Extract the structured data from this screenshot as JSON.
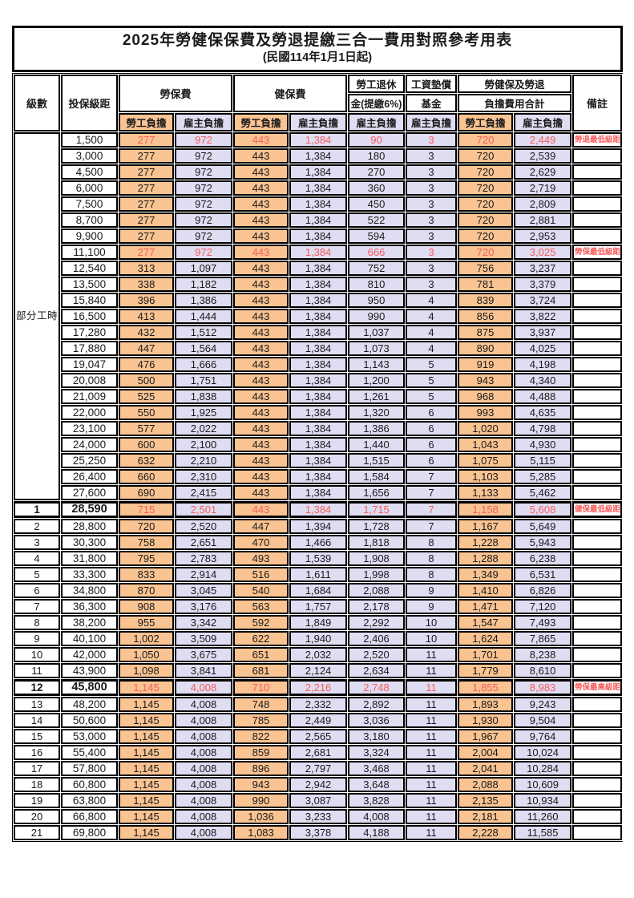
{
  "title": {
    "line1": "2025年勞健保保費及勞退提繳三合一費用對照參考用表",
    "line2": "(民國114年1月1日起)"
  },
  "header": {
    "level": "級數",
    "bracket": "投保級距",
    "labor_insurance": "勞保費",
    "health_insurance": "健保費",
    "pension_line1": "勞工退休",
    "pension_line2": "金(提繳6%)",
    "wage_fund_line1": "工資墊償",
    "wage_fund_line2": "基金",
    "total_line1": "勞健保及勞退",
    "total_line2": "負擔費用合計",
    "remark": "備註",
    "employee_burden": "勞工負擔",
    "employer_burden": "雇主負擔"
  },
  "part_time_label": "部分工時",
  "colors": {
    "employee_bg": "#F9C392",
    "employer_bg": "#DFDDF2",
    "highlight_value_red": "#F85C5C",
    "remark_red": "#F74545",
    "border_black": "#000000"
  },
  "rows": [
    {
      "level": "",
      "bracket": "1,500",
      "li_emp": "277",
      "li_er": "972",
      "hi_emp": "443",
      "hi_er": "1,384",
      "pension": "90",
      "fund": "3",
      "sum_emp": "720",
      "sum_er": "2,449",
      "remark": "勞退最低級距",
      "red": true,
      "thick": false
    },
    {
      "level": "",
      "bracket": "3,000",
      "li_emp": "277",
      "li_er": "972",
      "hi_emp": "443",
      "hi_er": "1,384",
      "pension": "180",
      "fund": "3",
      "sum_emp": "720",
      "sum_er": "2,539",
      "remark": ""
    },
    {
      "level": "",
      "bracket": "4,500",
      "li_emp": "277",
      "li_er": "972",
      "hi_emp": "443",
      "hi_er": "1,384",
      "pension": "270",
      "fund": "3",
      "sum_emp": "720",
      "sum_er": "2,629",
      "remark": ""
    },
    {
      "level": "",
      "bracket": "6,000",
      "li_emp": "277",
      "li_er": "972",
      "hi_emp": "443",
      "hi_er": "1,384",
      "pension": "360",
      "fund": "3",
      "sum_emp": "720",
      "sum_er": "2,719",
      "remark": ""
    },
    {
      "level": "",
      "bracket": "7,500",
      "li_emp": "277",
      "li_er": "972",
      "hi_emp": "443",
      "hi_er": "1,384",
      "pension": "450",
      "fund": "3",
      "sum_emp": "720",
      "sum_er": "2,809",
      "remark": ""
    },
    {
      "level": "",
      "bracket": "8,700",
      "li_emp": "277",
      "li_er": "972",
      "hi_emp": "443",
      "hi_er": "1,384",
      "pension": "522",
      "fund": "3",
      "sum_emp": "720",
      "sum_er": "2,881",
      "remark": ""
    },
    {
      "level": "",
      "bracket": "9,900",
      "li_emp": "277",
      "li_er": "972",
      "hi_emp": "443",
      "hi_er": "1,384",
      "pension": "594",
      "fund": "3",
      "sum_emp": "720",
      "sum_er": "2,953",
      "remark": ""
    },
    {
      "level": "",
      "bracket": "11,100",
      "li_emp": "277",
      "li_er": "972",
      "hi_emp": "443",
      "hi_er": "1,384",
      "pension": "666",
      "fund": "3",
      "sum_emp": "720",
      "sum_er": "3,025",
      "remark": "勞保最低級距",
      "red": true
    },
    {
      "level": "",
      "bracket": "12,540",
      "li_emp": "313",
      "li_er": "1,097",
      "hi_emp": "443",
      "hi_er": "1,384",
      "pension": "752",
      "fund": "3",
      "sum_emp": "756",
      "sum_er": "3,237",
      "remark": ""
    },
    {
      "level": "",
      "bracket": "13,500",
      "li_emp": "338",
      "li_er": "1,182",
      "hi_emp": "443",
      "hi_er": "1,384",
      "pension": "810",
      "fund": "3",
      "sum_emp": "781",
      "sum_er": "3,379",
      "remark": ""
    },
    {
      "level": "",
      "bracket": "15,840",
      "li_emp": "396",
      "li_er": "1,386",
      "hi_emp": "443",
      "hi_er": "1,384",
      "pension": "950",
      "fund": "4",
      "sum_emp": "839",
      "sum_er": "3,724",
      "remark": ""
    },
    {
      "level": "",
      "bracket": "16,500",
      "li_emp": "413",
      "li_er": "1,444",
      "hi_emp": "443",
      "hi_er": "1,384",
      "pension": "990",
      "fund": "4",
      "sum_emp": "856",
      "sum_er": "3,822",
      "remark": ""
    },
    {
      "level": "",
      "bracket": "17,280",
      "li_emp": "432",
      "li_er": "1,512",
      "hi_emp": "443",
      "hi_er": "1,384",
      "pension": "1,037",
      "fund": "4",
      "sum_emp": "875",
      "sum_er": "3,937",
      "remark": ""
    },
    {
      "level": "",
      "bracket": "17,880",
      "li_emp": "447",
      "li_er": "1,564",
      "hi_emp": "443",
      "hi_er": "1,384",
      "pension": "1,073",
      "fund": "4",
      "sum_emp": "890",
      "sum_er": "4,025",
      "remark": ""
    },
    {
      "level": "",
      "bracket": "19,047",
      "li_emp": "476",
      "li_er": "1,666",
      "hi_emp": "443",
      "hi_er": "1,384",
      "pension": "1,143",
      "fund": "5",
      "sum_emp": "919",
      "sum_er": "4,198",
      "remark": ""
    },
    {
      "level": "",
      "bracket": "20,008",
      "li_emp": "500",
      "li_er": "1,751",
      "hi_emp": "443",
      "hi_er": "1,384",
      "pension": "1,200",
      "fund": "5",
      "sum_emp": "943",
      "sum_er": "4,340",
      "remark": ""
    },
    {
      "level": "",
      "bracket": "21,009",
      "li_emp": "525",
      "li_er": "1,838",
      "hi_emp": "443",
      "hi_er": "1,384",
      "pension": "1,261",
      "fund": "5",
      "sum_emp": "968",
      "sum_er": "4,488",
      "remark": ""
    },
    {
      "level": "",
      "bracket": "22,000",
      "li_emp": "550",
      "li_er": "1,925",
      "hi_emp": "443",
      "hi_er": "1,384",
      "pension": "1,320",
      "fund": "6",
      "sum_emp": "993",
      "sum_er": "4,635",
      "remark": ""
    },
    {
      "level": "",
      "bracket": "23,100",
      "li_emp": "577",
      "li_er": "2,022",
      "hi_emp": "443",
      "hi_er": "1,384",
      "pension": "1,386",
      "fund": "6",
      "sum_emp": "1,020",
      "sum_er": "4,798",
      "remark": ""
    },
    {
      "level": "",
      "bracket": "24,000",
      "li_emp": "600",
      "li_er": "2,100",
      "hi_emp": "443",
      "hi_er": "1,384",
      "pension": "1,440",
      "fund": "6",
      "sum_emp": "1,043",
      "sum_er": "4,930",
      "remark": ""
    },
    {
      "level": "",
      "bracket": "25,250",
      "li_emp": "632",
      "li_er": "2,210",
      "hi_emp": "443",
      "hi_er": "1,384",
      "pension": "1,515",
      "fund": "6",
      "sum_emp": "1,075",
      "sum_er": "5,115",
      "remark": ""
    },
    {
      "level": "",
      "bracket": "26,400",
      "li_emp": "660",
      "li_er": "2,310",
      "hi_emp": "443",
      "hi_er": "1,384",
      "pension": "1,584",
      "fund": "7",
      "sum_emp": "1,103",
      "sum_er": "5,285",
      "remark": ""
    },
    {
      "level": "",
      "bracket": "27,600",
      "li_emp": "690",
      "li_er": "2,415",
      "hi_emp": "443",
      "hi_er": "1,384",
      "pension": "1,656",
      "fund": "7",
      "sum_emp": "1,133",
      "sum_er": "5,462",
      "remark": ""
    },
    {
      "level": "1",
      "bracket": "28,590",
      "li_emp": "715",
      "li_er": "2,501",
      "hi_emp": "443",
      "hi_er": "1,384",
      "pension": "1,715",
      "fund": "7",
      "sum_emp": "1,158",
      "sum_er": "5,608",
      "remark": "健保最低級距",
      "red": true,
      "thick": true
    },
    {
      "level": "2",
      "bracket": "28,800",
      "li_emp": "720",
      "li_er": "2,520",
      "hi_emp": "447",
      "hi_er": "1,394",
      "pension": "1,728",
      "fund": "7",
      "sum_emp": "1,167",
      "sum_er": "5,649",
      "remark": ""
    },
    {
      "level": "3",
      "bracket": "30,300",
      "li_emp": "758",
      "li_er": "2,651",
      "hi_emp": "470",
      "hi_er": "1,466",
      "pension": "1,818",
      "fund": "8",
      "sum_emp": "1,228",
      "sum_er": "5,943",
      "remark": ""
    },
    {
      "level": "4",
      "bracket": "31,800",
      "li_emp": "795",
      "li_er": "2,783",
      "hi_emp": "493",
      "hi_er": "1,539",
      "pension": "1,908",
      "fund": "8",
      "sum_emp": "1,288",
      "sum_er": "6,238",
      "remark": ""
    },
    {
      "level": "5",
      "bracket": "33,300",
      "li_emp": "833",
      "li_er": "2,914",
      "hi_emp": "516",
      "hi_er": "1,611",
      "pension": "1,998",
      "fund": "8",
      "sum_emp": "1,349",
      "sum_er": "6,531",
      "remark": ""
    },
    {
      "level": "6",
      "bracket": "34,800",
      "li_emp": "870",
      "li_er": "3,045",
      "hi_emp": "540",
      "hi_er": "1,684",
      "pension": "2,088",
      "fund": "9",
      "sum_emp": "1,410",
      "sum_er": "6,826",
      "remark": ""
    },
    {
      "level": "7",
      "bracket": "36,300",
      "li_emp": "908",
      "li_er": "3,176",
      "hi_emp": "563",
      "hi_er": "1,757",
      "pension": "2,178",
      "fund": "9",
      "sum_emp": "1,471",
      "sum_er": "7,120",
      "remark": ""
    },
    {
      "level": "8",
      "bracket": "38,200",
      "li_emp": "955",
      "li_er": "3,342",
      "hi_emp": "592",
      "hi_er": "1,849",
      "pension": "2,292",
      "fund": "10",
      "sum_emp": "1,547",
      "sum_er": "7,493",
      "remark": ""
    },
    {
      "level": "9",
      "bracket": "40,100",
      "li_emp": "1,002",
      "li_er": "3,509",
      "hi_emp": "622",
      "hi_er": "1,940",
      "pension": "2,406",
      "fund": "10",
      "sum_emp": "1,624",
      "sum_er": "7,865",
      "remark": ""
    },
    {
      "level": "10",
      "bracket": "42,000",
      "li_emp": "1,050",
      "li_er": "3,675",
      "hi_emp": "651",
      "hi_er": "2,032",
      "pension": "2,520",
      "fund": "11",
      "sum_emp": "1,701",
      "sum_er": "8,238",
      "remark": ""
    },
    {
      "level": "11",
      "bracket": "43,900",
      "li_emp": "1,098",
      "li_er": "3,841",
      "hi_emp": "681",
      "hi_er": "2,124",
      "pension": "2,634",
      "fund": "11",
      "sum_emp": "1,779",
      "sum_er": "8,610",
      "remark": ""
    },
    {
      "level": "12",
      "bracket": "45,800",
      "li_emp": "1,145",
      "li_er": "4,008",
      "hi_emp": "710",
      "hi_er": "2,216",
      "pension": "2,748",
      "fund": "11",
      "sum_emp": "1,855",
      "sum_er": "8,983",
      "remark": "勞保最高級距",
      "red": true,
      "thick": true
    },
    {
      "level": "13",
      "bracket": "48,200",
      "li_emp": "1,145",
      "li_er": "4,008",
      "hi_emp": "748",
      "hi_er": "2,332",
      "pension": "2,892",
      "fund": "11",
      "sum_emp": "1,893",
      "sum_er": "9,243",
      "remark": ""
    },
    {
      "level": "14",
      "bracket": "50,600",
      "li_emp": "1,145",
      "li_er": "4,008",
      "hi_emp": "785",
      "hi_er": "2,449",
      "pension": "3,036",
      "fund": "11",
      "sum_emp": "1,930",
      "sum_er": "9,504",
      "remark": ""
    },
    {
      "level": "15",
      "bracket": "53,000",
      "li_emp": "1,145",
      "li_er": "4,008",
      "hi_emp": "822",
      "hi_er": "2,565",
      "pension": "3,180",
      "fund": "11",
      "sum_emp": "1,967",
      "sum_er": "9,764",
      "remark": ""
    },
    {
      "level": "16",
      "bracket": "55,400",
      "li_emp": "1,145",
      "li_er": "4,008",
      "hi_emp": "859",
      "hi_er": "2,681",
      "pension": "3,324",
      "fund": "11",
      "sum_emp": "2,004",
      "sum_er": "10,024",
      "remark": ""
    },
    {
      "level": "17",
      "bracket": "57,800",
      "li_emp": "1,145",
      "li_er": "4,008",
      "hi_emp": "896",
      "hi_er": "2,797",
      "pension": "3,468",
      "fund": "11",
      "sum_emp": "2,041",
      "sum_er": "10,284",
      "remark": ""
    },
    {
      "level": "18",
      "bracket": "60,800",
      "li_emp": "1,145",
      "li_er": "4,008",
      "hi_emp": "943",
      "hi_er": "2,942",
      "pension": "3,648",
      "fund": "11",
      "sum_emp": "2,088",
      "sum_er": "10,609",
      "remark": ""
    },
    {
      "level": "19",
      "bracket": "63,800",
      "li_emp": "1,145",
      "li_er": "4,008",
      "hi_emp": "990",
      "hi_er": "3,087",
      "pension": "3,828",
      "fund": "11",
      "sum_emp": "2,135",
      "sum_er": "10,934",
      "remark": ""
    },
    {
      "level": "20",
      "bracket": "66,800",
      "li_emp": "1,145",
      "li_er": "4,008",
      "hi_emp": "1,036",
      "hi_er": "3,233",
      "pension": "4,008",
      "fund": "11",
      "sum_emp": "2,181",
      "sum_er": "11,260",
      "remark": ""
    },
    {
      "level": "21",
      "bracket": "69,800",
      "li_emp": "1,145",
      "li_er": "4,008",
      "hi_emp": "1,083",
      "hi_er": "3,378",
      "pension": "4,188",
      "fund": "11",
      "sum_emp": "2,228",
      "sum_er": "11,585",
      "remark": ""
    }
  ]
}
